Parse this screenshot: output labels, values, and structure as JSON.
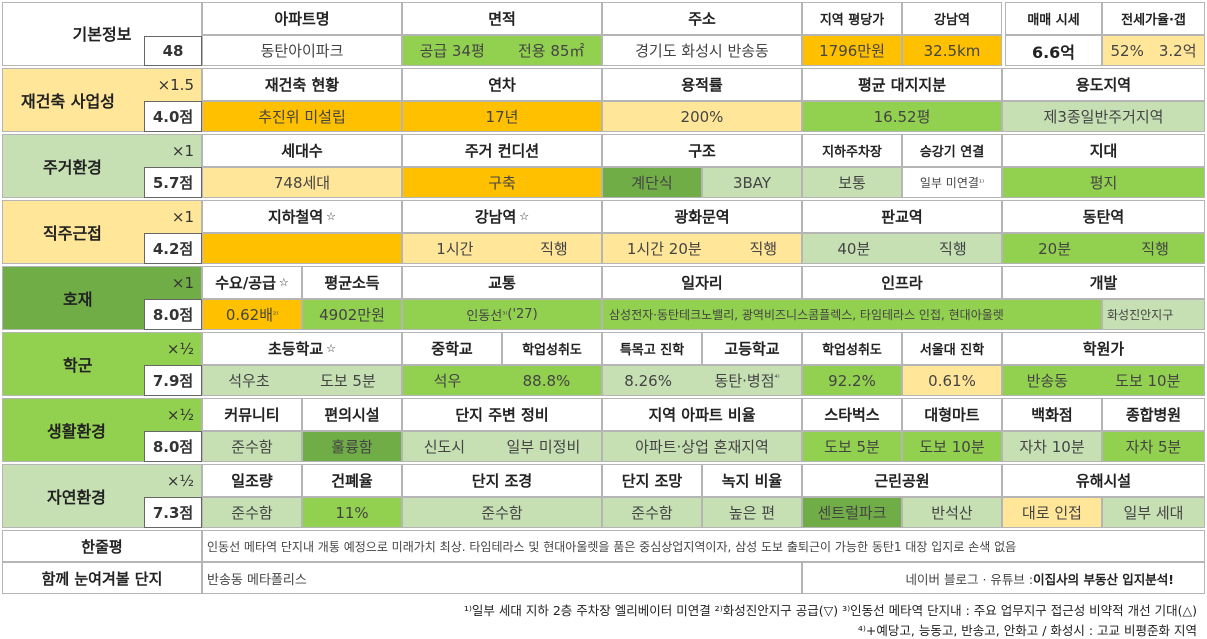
{
  "basic": {
    "label": "기본정보",
    "score": "48",
    "h_apt": "아파트명",
    "apt_name": "동탄아이파크",
    "h_area": "면적",
    "area_supply": "공급 34평",
    "area_excl": "전용 85㎡",
    "h_addr": "주소",
    "address": "경기도 화성시 반송동",
    "h_price_py": "지역 평당가",
    "price_py": "1796만원",
    "h_gangnam": "강남역",
    "gangnam_dist": "32.5km",
    "h_sale": "매매 시세",
    "sale": "6.6억",
    "h_jeonse": "전세가율·갭",
    "jeonse_rate": "52%",
    "gap": "3.2억"
  },
  "rebuild": {
    "label": "재건축 사업성",
    "mult": "×1.5",
    "score": "4.0점",
    "h_status": "재건축 현황",
    "status": "추진위 미설립",
    "h_age": "연차",
    "age": "17년",
    "h_far": "용적률",
    "far": "200%",
    "h_land": "평균 대지지분",
    "land": "16.52평",
    "h_zone": "용도지역",
    "zone": "제3종일반주거지역"
  },
  "living": {
    "label": "주거환경",
    "mult": "×1",
    "score": "5.7점",
    "h_households": "세대수",
    "households": "748세대",
    "h_condition": "주거 컨디션",
    "condition": "구축",
    "h_structure": "구조",
    "structure_type": "계단식",
    "structure_bay": "3BAY",
    "h_parking": "지하주차장",
    "parking": "보통",
    "h_elevator": "승강기 연결",
    "elevator": "일부 미연결",
    "h_terrain": "지대",
    "terrain": "평지"
  },
  "commute": {
    "label": "직주근접",
    "mult": "×1",
    "score": "4.2점",
    "h_subway": "지하철역",
    "star": "☆",
    "h_gangnam": "강남역",
    "gangnam_time": "1시간",
    "gangnam_mode": "직행",
    "h_gwanghwamun": "광화문역",
    "gwanghwamun_time": "1시간 20분",
    "gwanghwamun_mode": "직행",
    "h_pangyo": "판교역",
    "pangyo_time": "40분",
    "pangyo_mode": "직행",
    "h_dongtan": "동탄역",
    "dongtan_time": "20분",
    "dongtan_mode": "직행"
  },
  "dev": {
    "label": "호재",
    "mult": "×1",
    "score": "8.0점",
    "h_supply": "수요/공급",
    "supply": "0.62배",
    "h_income": "평균소득",
    "income": "4902만원",
    "h_transport": "교통",
    "transport": "인동선",
    "transport_year": "('27)",
    "h_jobs": "일자리",
    "h_infra": "인프라",
    "jobs_infra": "삼성전자·동탄테크노밸리, 광역비즈니스콤플렉스, 타임테라스 인접, 현대아울렛",
    "h_develop": "개발",
    "develop": "화성진안지구"
  },
  "school": {
    "label": "학군",
    "mult": "×½",
    "score": "7.9점",
    "h_elem": "초등학교",
    "elem": "석우초",
    "elem_dist": "도보 5분",
    "h_middle": "중학교",
    "middle": "석우",
    "h_middle_ach": "학업성취도",
    "middle_ach": "88.8%",
    "h_special": "특목고 진학",
    "special": "8.26%",
    "h_high": "고등학교",
    "high": "동탄·병점",
    "h_high_ach": "학업성취도",
    "high_ach": "92.2%",
    "h_seoul": "서울대 진학",
    "seoul": "0.61%",
    "h_academy": "학원가",
    "academy": "반송동",
    "academy_dist": "도보 10분"
  },
  "life": {
    "label": "생활환경",
    "mult": "×½",
    "score": "8.0점",
    "h_community": "커뮤니티",
    "community": "준수함",
    "h_conv": "편의시설",
    "conv": "훌륭함",
    "h_surround": "단지 주변 정비",
    "surround_a": "신도시",
    "surround_b": "일부 미정비",
    "h_ratio": "지역 아파트 비율",
    "ratio": "아파트·상업 혼재지역",
    "h_starbucks": "스타벅스",
    "starbucks": "도보 5분",
    "h_mart": "대형마트",
    "mart": "도보 10분",
    "h_dept": "백화점",
    "dept": "자차 10분",
    "h_hospital": "종합병원",
    "hospital": "자차 5분"
  },
  "nature": {
    "label": "자연환경",
    "mult": "×½",
    "score": "7.3점",
    "h_sun": "일조량",
    "sun": "준수함",
    "h_bcr": "건폐율",
    "bcr": "11%",
    "h_landscape": "단지 조경",
    "landscape": "준수함",
    "h_view": "단지 조망",
    "view": "준수함",
    "h_green": "녹지 비율",
    "green": "높은 편",
    "h_park": "근린공원",
    "park": "센트럴파크",
    "park2": "반석산",
    "h_hazard": "유해시설",
    "hazard": "대로 인접",
    "hazard2": "일부 세대"
  },
  "summary": {
    "label": "한줄평",
    "text": "인동선 메타역 단지내 개통 예정으로 미래가치 최상. 타임테라스 및 현대아울렛을 품은 중심상업지역이자, 삼성 도보 출퇴근이 가능한 동탄1 대장 입지로 손색 없음"
  },
  "related": {
    "label": "함께 눈여겨볼 단지",
    "text": "반송동 메타폴리스",
    "credit_pre": "네이버 블로그 · 유튜브 : ",
    "credit_bold": "이집사의 부동산 입지분석!"
  },
  "footnotes": {
    "line1": "¹⁾일부 세대 지하 2층 주차장 엘리베이터 미연결  ²⁾화성진안지구 공급(▽)  ³⁾인동선 메타역 단지내 : 주요 업무지구 접근성 비약적 개선 기대(△)",
    "line2": "⁴⁾+예당고, 능동고, 반송고, 안화고 / 화성시 : 고교 비평준화 지역"
  },
  "sup": {
    "one": "¹⁾",
    "two": "²⁾",
    "three": "³⁾",
    "four": "⁴⁾"
  }
}
